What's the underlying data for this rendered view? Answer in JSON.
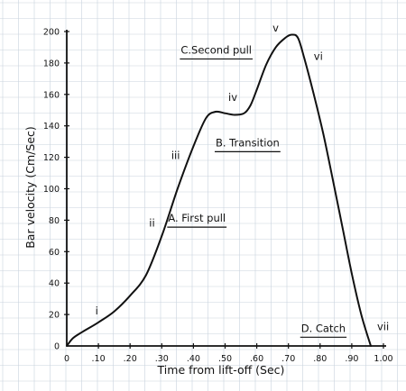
{
  "chart_data": {
    "type": "line",
    "xlabel": "Time from lift-off (Sec)",
    "ylabel": "Bar velocity (Cm/Sec)",
    "xlim": [
      0,
      1.0
    ],
    "ylim": [
      0,
      200
    ],
    "grid": true,
    "x_ticks": [
      "0",
      ".10",
      ".20",
      ".30",
      ".40",
      ".50",
      ".60",
      ".70",
      ".80",
      ".90",
      "1.00"
    ],
    "y_ticks": [
      "0",
      "20",
      "40",
      "60",
      "80",
      "100",
      "120",
      "140",
      "160",
      "180",
      "200"
    ],
    "series": [
      {
        "x": [
          0.0,
          0.02,
          0.05,
          0.1,
          0.15,
          0.2,
          0.25,
          0.3,
          0.35,
          0.4,
          0.44,
          0.47,
          0.5,
          0.53,
          0.56,
          0.58,
          0.6,
          0.63,
          0.66,
          0.69,
          0.71,
          0.73,
          0.75,
          0.78,
          0.81,
          0.84,
          0.87,
          0.9,
          0.93,
          0.96
        ],
        "y": [
          0,
          5,
          9,
          15,
          22,
          32,
          45,
          70,
          100,
          127,
          145,
          149,
          148,
          147,
          148,
          153,
          163,
          179,
          190,
          196,
          198,
          196,
          183,
          160,
          135,
          106,
          76,
          46,
          20,
          0
        ]
      }
    ],
    "annotations": [
      {
        "text": "i",
        "x": 0.09,
        "y": 20
      },
      {
        "text": "ii",
        "x": 0.26,
        "y": 76
      },
      {
        "text": "iii",
        "x": 0.33,
        "y": 119
      },
      {
        "text": "iv",
        "x": 0.51,
        "y": 156
      },
      {
        "text": "v",
        "x": 0.65,
        "y": 200
      },
      {
        "text": "vi",
        "x": 0.78,
        "y": 182
      },
      {
        "text": "vii",
        "x": 0.98,
        "y": 10
      },
      {
        "text": "A. First pull",
        "x": 0.32,
        "y": 79,
        "underline": true
      },
      {
        "text": "B. Transition",
        "x": 0.47,
        "y": 127,
        "underline": true
      },
      {
        "text": "C.Second pull",
        "x": 0.36,
        "y": 186,
        "underline": true
      },
      {
        "text": "D. Catch",
        "x": 0.74,
        "y": 9,
        "underline": true
      }
    ]
  }
}
